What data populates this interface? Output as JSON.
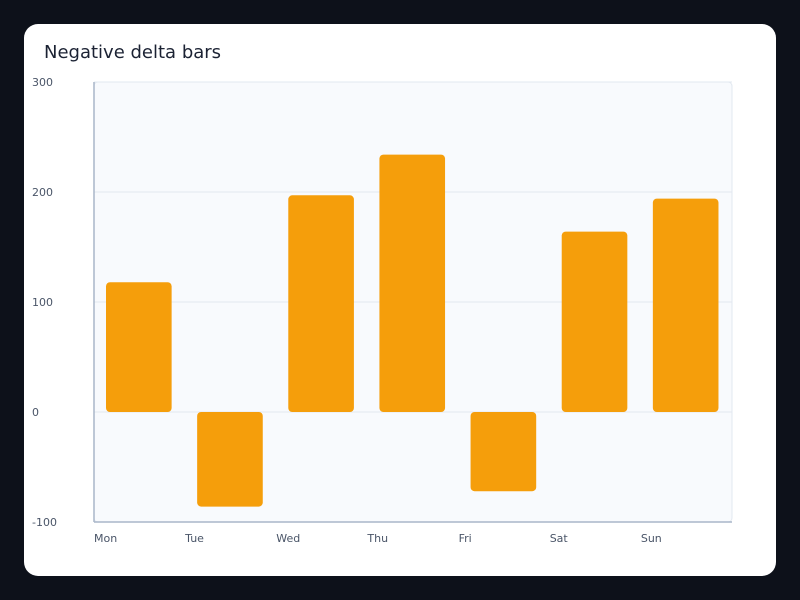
{
  "chart_data": {
    "type": "bar",
    "title": "Negative delta bars",
    "xlabel": "",
    "ylabel": "",
    "categories": [
      "Mon",
      "Tue",
      "Wed",
      "Thu",
      "Fri",
      "Sat",
      "Sun"
    ],
    "values": [
      118,
      -86,
      197,
      234,
      -72,
      164,
      194
    ],
    "ylim": [
      -100,
      300
    ],
    "yticks": [
      -100,
      0,
      100,
      200,
      300
    ],
    "grid": true,
    "bar_color": "#f59e0b",
    "plot_background": "#f8fafd",
    "grid_color": "#e2e8f0",
    "axis_color": "#a9b6c9"
  }
}
